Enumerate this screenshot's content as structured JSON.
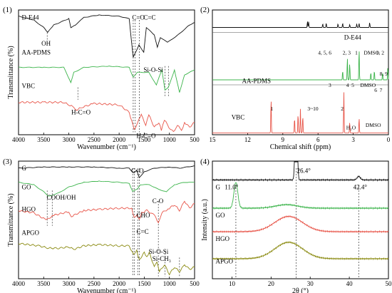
{
  "figure": {
    "panels": [
      {
        "id": "1",
        "label": "(1)"
      },
      {
        "id": "2",
        "label": "(2)"
      },
      {
        "id": "3",
        "label": "(3)"
      },
      {
        "id": "4",
        "label": "(4)"
      }
    ]
  },
  "chart_data": [
    {
      "id": "p1",
      "type": "line",
      "title": "",
      "xlabel": "Wavenumber (cm⁻¹)",
      "ylabel": "Transmittance (%)",
      "xlim": [
        4000,
        500
      ],
      "x_ticks": [
        4000,
        3500,
        3000,
        2500,
        2000,
        1500,
        1000,
        500
      ],
      "series": [
        {
          "name": "D-E44",
          "color": "#111111",
          "x": [
            4000,
            3700,
            3500,
            3420,
            3300,
            3000,
            2960,
            2870,
            2700,
            2400,
            2000,
            1800,
            1720,
            1605,
            1510,
            1460,
            1300,
            1240,
            1180,
            1040,
            830,
            600,
            500
          ],
          "y": [
            0.95,
            0.92,
            0.86,
            0.82,
            0.88,
            0.93,
            0.86,
            0.88,
            0.94,
            0.96,
            0.95,
            0.93,
            0.62,
            0.72,
            0.66,
            0.86,
            0.8,
            0.7,
            0.78,
            0.74,
            0.8,
            0.88,
            0.9
          ]
        },
        {
          "name": "AA-PDMS",
          "color": "#3cb44b",
          "x": [
            4000,
            3500,
            3100,
            2960,
            2900,
            2700,
            2200,
            1800,
            1720,
            1640,
            1410,
            1260,
            1150,
            1090,
            1020,
            900,
            800,
            700,
            500
          ],
          "y": [
            0.54,
            0.54,
            0.54,
            0.42,
            0.5,
            0.54,
            0.55,
            0.54,
            0.46,
            0.5,
            0.5,
            0.4,
            0.52,
            0.36,
            0.38,
            0.52,
            0.34,
            0.48,
            0.52
          ]
        },
        {
          "name": "VBC",
          "color": "#e8564a",
          "x": [
            4000,
            3500,
            3100,
            3000,
            2900,
            2840,
            2740,
            2500,
            2000,
            1800,
            1700,
            1605,
            1560,
            1470,
            1410,
            1300,
            1210,
            1160,
            1100,
            1010,
            920,
            840,
            760,
            700,
            600,
            500
          ],
          "y": [
            0.26,
            0.26,
            0.26,
            0.24,
            0.22,
            0.2,
            0.22,
            0.25,
            0.24,
            0.18,
            0.04,
            0.12,
            0.16,
            0.08,
            0.16,
            0.06,
            0.1,
            0.04,
            0.12,
            0.06,
            0.02,
            0.08,
            0.03,
            0.1,
            0.06,
            0.1
          ]
        }
      ],
      "annotations": [
        {
          "text": "OH",
          "x": 3430
        },
        {
          "text": "C=O",
          "x": 1720
        },
        {
          "text": "C=C",
          "x": 1600
        },
        {
          "text": "Si-O-Si",
          "x": 1080
        },
        {
          "text": "H-C=O",
          "x": 2800
        },
        {
          "text": "H-C=O",
          "x": 1700
        }
      ]
    },
    {
      "id": "p2",
      "type": "line",
      "title": "",
      "xlabel": "Chemical shift (ppm)",
      "ylabel": "",
      "xlim": [
        15,
        0
      ],
      "x_ticks": [
        15,
        12,
        9,
        6,
        3,
        0
      ],
      "series": [
        {
          "name": "D-E44",
          "color": "#111111",
          "peaks": [
            {
              "x": 6.9,
              "h": 0.5
            },
            {
              "x": 6.8,
              "h": 0.45
            },
            {
              "x": 5.6,
              "h": 0.3
            },
            {
              "x": 5.3,
              "h": 0.35
            },
            {
              "x": 4.3,
              "h": 0.3
            },
            {
              "x": 3.9,
              "h": 0.35
            },
            {
              "x": 3.3,
              "h": 0.25
            },
            {
              "x": 2.7,
              "h": 0.3
            },
            {
              "x": 2.5,
              "h": 0.35
            },
            {
              "x": 1.6,
              "h": 0.4
            }
          ]
        },
        {
          "name": "AA-PDMS",
          "color": "#3cb44b",
          "peaks": [
            {
              "x": 3.9,
              "h": 0.25
            },
            {
              "x": 3.5,
              "h": 0.6
            },
            {
              "x": 3.3,
              "h": 0.45
            },
            {
              "x": 2.5,
              "h": 0.85
            },
            {
              "x": 1.5,
              "h": 0.2
            },
            {
              "x": 1.2,
              "h": 0.25
            },
            {
              "x": 0.5,
              "h": 0.2
            },
            {
              "x": 0.05,
              "h": 0.35
            }
          ]
        },
        {
          "name": "VBC",
          "color": "#e8564a",
          "peaks": [
            {
              "x": 10.0,
              "h": 0.8
            },
            {
              "x": 8.0,
              "h": 0.35
            },
            {
              "x": 7.7,
              "h": 0.45
            },
            {
              "x": 7.5,
              "h": 0.55
            },
            {
              "x": 7.3,
              "h": 0.4
            },
            {
              "x": 3.8,
              "h": 0.95
            },
            {
              "x": 3.3,
              "h": 0.25
            },
            {
              "x": 2.5,
              "h": 0.35
            }
          ]
        }
      ],
      "annotations": [
        {
          "text": "4, 5, 6",
          "x": 5.4
        },
        {
          "text": "2, 3",
          "x": 3.9
        },
        {
          "text": "1",
          "x": 2.9
        },
        {
          "text": "DMSO",
          "x": 2.6
        },
        {
          "text": "1, 2",
          "x": 5.9
        },
        {
          "text": "3",
          "x": 4.2
        },
        {
          "text": "4",
          "x": 3.6
        },
        {
          "text": "5",
          "x": 3.3
        },
        {
          "text": "DMSO",
          "x": 2.5
        },
        {
          "text": "6",
          "x": 1.6
        },
        {
          "text": "7",
          "x": 0.4
        },
        {
          "text": "8, 9",
          "x": 0.4
        },
        {
          "text": "1",
          "x": 10.0
        },
        {
          "text": "3~10",
          "x": 7.6
        },
        {
          "text": "2",
          "x": 3.8
        },
        {
          "text": "H₂O",
          "x": 3.3
        },
        {
          "text": "DMSO",
          "x": 2.5
        }
      ]
    },
    {
      "id": "p3",
      "type": "line",
      "title": "",
      "xlabel": "Wavenumber (cm⁻¹)",
      "ylabel": "Transmittance (%)",
      "xlim": [
        4000,
        500
      ],
      "x_ticks": [
        4000,
        3500,
        3000,
        2500,
        2000,
        1500,
        1000,
        500
      ],
      "series": [
        {
          "name": "G",
          "color": "#111111",
          "x": [
            4000,
            3500,
            3000,
            2500,
            2000,
            1800,
            1720,
            1650,
            1600,
            1500,
            1300,
            1000,
            800,
            500
          ],
          "y": [
            0.94,
            0.95,
            0.95,
            0.95,
            0.94,
            0.94,
            0.9,
            0.92,
            0.86,
            0.91,
            0.94,
            0.95,
            0.94,
            0.96
          ]
        },
        {
          "name": "GO",
          "color": "#3cb44b",
          "x": [
            4000,
            3700,
            3500,
            3400,
            3200,
            3000,
            2700,
            2400,
            2000,
            1800,
            1730,
            1620,
            1580,
            1400,
            1220,
            1060,
            900,
            700,
            500
          ],
          "y": [
            0.82,
            0.8,
            0.74,
            0.7,
            0.73,
            0.78,
            0.82,
            0.83,
            0.82,
            0.81,
            0.74,
            0.77,
            0.8,
            0.8,
            0.76,
            0.74,
            0.8,
            0.82,
            0.82
          ]
        },
        {
          "name": "HGO",
          "color": "#e8564a",
          "x": [
            4000,
            3700,
            3450,
            3300,
            3000,
            2950,
            2700,
            2400,
            2000,
            1750,
            1700,
            1640,
            1600,
            1550,
            1450,
            1300,
            1220,
            1150,
            1000,
            900,
            800,
            700,
            600,
            500
          ],
          "y": [
            0.58,
            0.56,
            0.5,
            0.54,
            0.57,
            0.53,
            0.58,
            0.59,
            0.6,
            0.6,
            0.52,
            0.55,
            0.5,
            0.56,
            0.58,
            0.54,
            0.48,
            0.56,
            0.6,
            0.63,
            0.58,
            0.66,
            0.6,
            0.64
          ]
        },
        {
          "name": "APGO",
          "color": "#8a8a10",
          "x": [
            4000,
            3600,
            3400,
            3200,
            3000,
            2900,
            2700,
            2400,
            2000,
            1800,
            1710,
            1650,
            1600,
            1500,
            1450,
            1400,
            1300,
            1250,
            1200,
            1100,
            1000,
            900,
            800,
            700,
            600,
            500
          ],
          "y": [
            0.3,
            0.28,
            0.26,
            0.26,
            0.27,
            0.25,
            0.28,
            0.29,
            0.28,
            0.28,
            0.2,
            0.24,
            0.16,
            0.22,
            0.18,
            0.22,
            0.1,
            0.14,
            0.06,
            0.12,
            0.04,
            0.1,
            0.06,
            0.12,
            0.08,
            0.1
          ]
        }
      ],
      "annotations": [
        {
          "text": "C=O",
          "x": 1720
        },
        {
          "text": "COOH/OH",
          "x": 3400
        },
        {
          "text": "CHO",
          "x": 1700
        },
        {
          "text": "C-O",
          "x": 1220
        },
        {
          "text": "C=C",
          "x": 1630
        },
        {
          "text": "Si-O-Si",
          "x": 1090
        },
        {
          "text": "Si-CH₃",
          "x": 800
        }
      ]
    },
    {
      "id": "p4",
      "type": "line",
      "title": "",
      "xlabel": "2θ (°)",
      "ylabel": "Intensity (a.u.)",
      "xlim": [
        5,
        50
      ],
      "x_ticks": [
        10,
        20,
        30,
        40,
        50
      ],
      "series": [
        {
          "name": "G",
          "color": "#111111",
          "peaks": [
            {
              "x": 26.4,
              "h": 0.9,
              "w": 0.35
            },
            {
              "x": 42.4,
              "h": 0.03,
              "w": 0.6
            }
          ],
          "base": 0.84
        },
        {
          "name": "GO",
          "color": "#3cb44b",
          "peaks": [
            {
              "x": 11.0,
              "h": 0.22,
              "w": 0.7
            },
            {
              "x": 24.0,
              "h": 0.03,
              "w": 4.0
            }
          ],
          "base": 0.6
        },
        {
          "name": "HGO",
          "color": "#e8564a",
          "peaks": [
            {
              "x": 24.5,
              "h": 0.13,
              "w": 5.0
            }
          ],
          "base": 0.4
        },
        {
          "name": "APGO",
          "color": "#8a8a10",
          "peaks": [
            {
              "x": 24.5,
              "h": 0.14,
              "w": 5.0
            }
          ],
          "base": 0.17
        }
      ],
      "annotations": [
        {
          "text": "26.4°",
          "x": 26.4
        },
        {
          "text": "11.0°",
          "x": 11.0
        },
        {
          "text": "42.4°",
          "x": 42.4
        }
      ]
    }
  ]
}
